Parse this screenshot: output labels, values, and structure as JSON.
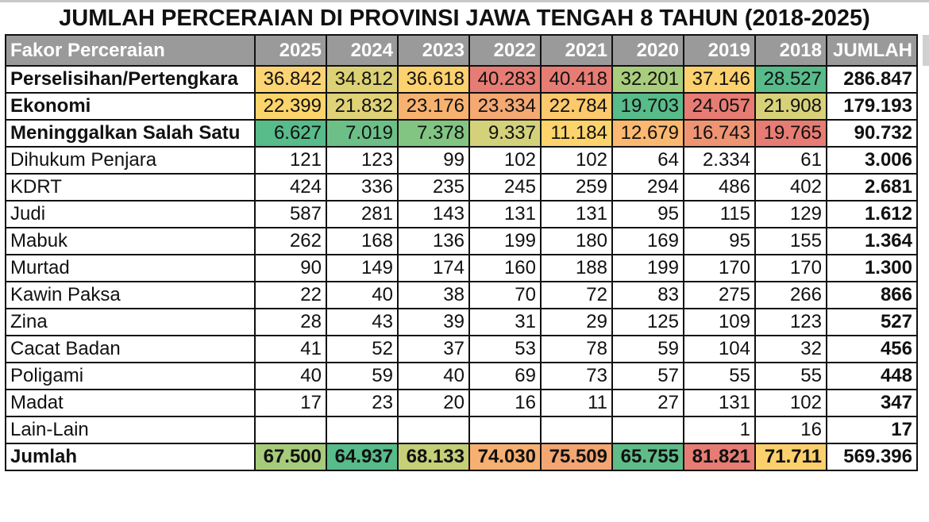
{
  "title": "JUMLAH PERCERAIAN DI PROVINSI JAWA TENGAH 8 TAHUN (2018-2025)",
  "header": {
    "label": "Fakor Perceraian",
    "years": [
      "2025",
      "2024",
      "2023",
      "2022",
      "2021",
      "2020",
      "2019",
      "2018"
    ],
    "total": "JUMLAH"
  },
  "colors": {
    "header_bg": "#9a9a9a",
    "heat_green": "#57bb8a",
    "heat_yellow": "#ffd666",
    "heat_red": "#e67c73"
  },
  "rows": [
    {
      "label": "Perselisihan/Pertengkara",
      "bold": true,
      "values": [
        "36.842",
        "34.812",
        "36.618",
        "40.283",
        "40.418",
        "32.201",
        "37.146",
        "28.527"
      ],
      "total": "286.847",
      "colors": [
        "#fcd474",
        "#dcd174",
        "#fdd16e",
        "#e67c73",
        "#e67c73",
        "#a8cd7c",
        "#fdd16e",
        "#57bb8a"
      ]
    },
    {
      "label": "Ekonomi",
      "bold": true,
      "values": [
        "22.399",
        "21.832",
        "23.176",
        "23.334",
        "22.784",
        "19.703",
        "24.057",
        "21.908"
      ],
      "total": "179.193",
      "colors": [
        "#fbd56b",
        "#dfd277",
        "#f8b270",
        "#f4a872",
        "#fcca6c",
        "#57bb8a",
        "#e67c73",
        "#d7d27a"
      ]
    },
    {
      "label": "Meninggalkan Salah Satu",
      "bold": true,
      "values": [
        "6.627",
        "7.019",
        "7.378",
        "9.337",
        "11.184",
        "12.679",
        "16.743",
        "19.765"
      ],
      "total": "90.732",
      "colors": [
        "#57bb8a",
        "#6cc087",
        "#82c583",
        "#d3d27b",
        "#fdd46c",
        "#fbb870",
        "#ee9473",
        "#e67c73"
      ]
    },
    {
      "label": "Dihukum Penjara",
      "bold": false,
      "values": [
        "121",
        "123",
        "99",
        "102",
        "102",
        "64",
        "2.334",
        "61"
      ],
      "total": "3.006"
    },
    {
      "label": "KDRT",
      "bold": false,
      "values": [
        "424",
        "336",
        "235",
        "245",
        "259",
        "294",
        "486",
        "402"
      ],
      "total": "2.681"
    },
    {
      "label": "Judi",
      "bold": false,
      "values": [
        "587",
        "281",
        "143",
        "131",
        "131",
        "95",
        "115",
        "129"
      ],
      "total": "1.612"
    },
    {
      "label": "Mabuk",
      "bold": false,
      "values": [
        "262",
        "168",
        "136",
        "199",
        "180",
        "169",
        "95",
        "155"
      ],
      "total": "1.364"
    },
    {
      "label": "Murtad",
      "bold": false,
      "values": [
        "90",
        "149",
        "174",
        "160",
        "188",
        "199",
        "170",
        "170"
      ],
      "total": "1.300"
    },
    {
      "label": "Kawin Paksa",
      "bold": false,
      "values": [
        "22",
        "40",
        "38",
        "70",
        "72",
        "83",
        "275",
        "266"
      ],
      "total": "866"
    },
    {
      "label": "Zina",
      "bold": false,
      "values": [
        "28",
        "43",
        "39",
        "31",
        "29",
        "125",
        "109",
        "123"
      ],
      "total": "527"
    },
    {
      "label": "Cacat Badan",
      "bold": false,
      "values": [
        "41",
        "52",
        "37",
        "53",
        "78",
        "59",
        "104",
        "32"
      ],
      "total": "456"
    },
    {
      "label": "Poligami",
      "bold": false,
      "values": [
        "40",
        "59",
        "40",
        "69",
        "73",
        "57",
        "55",
        "55"
      ],
      "total": "448"
    },
    {
      "label": "Madat",
      "bold": false,
      "values": [
        "17",
        "23",
        "20",
        "16",
        "11",
        "27",
        "131",
        "102"
      ],
      "total": "347"
    },
    {
      "label": "Lain-Lain",
      "bold": false,
      "values": [
        "",
        "",
        "",
        "",
        "",
        "",
        "1",
        "16"
      ],
      "total": "17"
    }
  ],
  "summary": {
    "label": "Jumlah",
    "values": [
      "67.500",
      "64.937",
      "68.133",
      "74.030",
      "75.509",
      "65.755",
      "81.821",
      "71.711"
    ],
    "total": "569.396",
    "colors": [
      "#a6cb7a",
      "#57bb8a",
      "#c4cf78",
      "#f6b071",
      "#f3a572",
      "#5fbc88",
      "#e67c73",
      "#fcd06d"
    ]
  },
  "chart_data": {
    "type": "table",
    "title": "JUMLAH PERCERAIAN DI PROVINSI JAWA TENGAH 8 TAHUN (2018-2025)",
    "columns": [
      "Fakor Perceraian",
      "2025",
      "2024",
      "2023",
      "2022",
      "2021",
      "2020",
      "2019",
      "2018",
      "JUMLAH"
    ],
    "categories": [
      "2025",
      "2024",
      "2023",
      "2022",
      "2021",
      "2020",
      "2019",
      "2018"
    ],
    "series": [
      {
        "name": "Perselisihan/Pertengkara",
        "values": [
          36842,
          34812,
          36618,
          40283,
          40418,
          32201,
          37146,
          28527
        ],
        "total": 286847
      },
      {
        "name": "Ekonomi",
        "values": [
          22399,
          21832,
          23176,
          23334,
          22784,
          19703,
          24057,
          21908
        ],
        "total": 179193
      },
      {
        "name": "Meninggalkan Salah Satu",
        "values": [
          6627,
          7019,
          7378,
          9337,
          11184,
          12679,
          16743,
          19765
        ],
        "total": 90732
      },
      {
        "name": "Dihukum Penjara",
        "values": [
          121,
          123,
          99,
          102,
          102,
          64,
          2334,
          61
        ],
        "total": 3006
      },
      {
        "name": "KDRT",
        "values": [
          424,
          336,
          235,
          245,
          259,
          294,
          486,
          402
        ],
        "total": 2681
      },
      {
        "name": "Judi",
        "values": [
          587,
          281,
          143,
          131,
          131,
          95,
          115,
          129
        ],
        "total": 1612
      },
      {
        "name": "Mabuk",
        "values": [
          262,
          168,
          136,
          199,
          180,
          169,
          95,
          155
        ],
        "total": 1364
      },
      {
        "name": "Murtad",
        "values": [
          90,
          149,
          174,
          160,
          188,
          199,
          170,
          170
        ],
        "total": 1300
      },
      {
        "name": "Kawin Paksa",
        "values": [
          22,
          40,
          38,
          70,
          72,
          83,
          275,
          266
        ],
        "total": 866
      },
      {
        "name": "Zina",
        "values": [
          28,
          43,
          39,
          31,
          29,
          125,
          109,
          123
        ],
        "total": 527
      },
      {
        "name": "Cacat Badan",
        "values": [
          41,
          52,
          37,
          53,
          78,
          59,
          104,
          32
        ],
        "total": 456
      },
      {
        "name": "Poligami",
        "values": [
          40,
          59,
          40,
          69,
          73,
          57,
          55,
          55
        ],
        "total": 448
      },
      {
        "name": "Madat",
        "values": [
          17,
          23,
          20,
          16,
          11,
          27,
          131,
          102
        ],
        "total": 347
      },
      {
        "name": "Lain-Lain",
        "values": [
          null,
          null,
          null,
          null,
          null,
          null,
          1,
          16
        ],
        "total": 17
      }
    ],
    "totals_row": {
      "name": "Jumlah",
      "values": [
        67500,
        64937,
        68133,
        74030,
        75509,
        65755,
        81821,
        71711
      ],
      "total": 569396
    },
    "heatmap": "green (low) - yellow - red (high) conditional formatting on top 3 rows and Jumlah row",
    "grid": true
  }
}
